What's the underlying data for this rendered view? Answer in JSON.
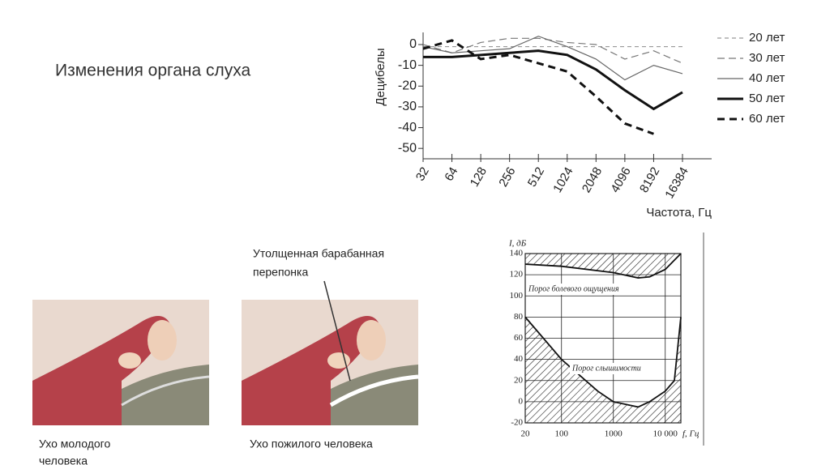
{
  "title": "Изменения органа слуха",
  "captions": {
    "membrane": [
      "Утолщенная  барабанная",
      "перепонка"
    ],
    "young": [
      "Ухо молодого",
      "человека"
    ],
    "old": "Ухо пожилого человека"
  },
  "chart_data": [
    {
      "type": "line",
      "ylabel": "Децибелы",
      "xlabel": "Частота, Гц",
      "categories": [
        "32",
        "64",
        "128",
        "256",
        "512",
        "1024",
        "2048",
        "4096",
        "8192",
        "16384"
      ],
      "ylim": [
        -50,
        5
      ],
      "yticks": [
        0,
        -10,
        -20,
        -30,
        -40,
        -50
      ],
      "series": [
        {
          "name": "20 лет",
          "color": "#999999",
          "width": 1.2,
          "dash": "5 4",
          "values": [
            -1,
            -1,
            -1,
            -1,
            -1,
            -1,
            -1,
            -1,
            -1,
            -1
          ]
        },
        {
          "name": "30 лет",
          "color": "#777777",
          "width": 1.2,
          "dash": "9 5",
          "values": [
            0,
            -4,
            1,
            3,
            3,
            1,
            0,
            -7,
            -3,
            -9
          ]
        },
        {
          "name": "40 лет",
          "color": "#666666",
          "width": 1.2,
          "dash": "",
          "values": [
            -1,
            -4,
            -3,
            -2,
            4,
            -1,
            -7,
            -17,
            -10,
            -14
          ]
        },
        {
          "name": "50 лет",
          "color": "#111111",
          "width": 3,
          "dash": "",
          "values": [
            -6,
            -6,
            -5,
            -4,
            -3,
            -5,
            -12,
            -22,
            -31,
            -23
          ]
        },
        {
          "name": "60 лет",
          "color": "#111111",
          "width": 3,
          "dash": "9 6",
          "values": [
            -2,
            2,
            -7,
            -5,
            -9,
            -13,
            -25,
            -38,
            -43,
            null
          ]
        }
      ]
    },
    {
      "type": "threshold",
      "ylabel": "I, дБ",
      "xlabel": "f, Гц",
      "log_x": true,
      "xlim": [
        20,
        20000
      ],
      "xticks": [
        20,
        100,
        1000,
        {
          "value": 10000,
          "label": "10 000"
        }
      ],
      "ylim": [
        -20,
        140
      ],
      "yticks": [
        140,
        120,
        100,
        80,
        60,
        40,
        20,
        0,
        -20
      ],
      "series": [
        {
          "name": "Порог болевого ощущения",
          "fill": "above",
          "x": [
            20,
            100,
            1000,
            3000,
            5000,
            10000,
            20000
          ],
          "values": [
            130,
            128,
            122,
            117,
            118,
            125,
            140
          ]
        },
        {
          "name": "Порог слышимости",
          "fill": "below",
          "x": [
            20,
            100,
            500,
            1000,
            3000,
            5000,
            10000,
            15000,
            20000
          ],
          "values": [
            80,
            40,
            10,
            0,
            -5,
            0,
            10,
            20,
            80
          ]
        }
      ]
    }
  ]
}
